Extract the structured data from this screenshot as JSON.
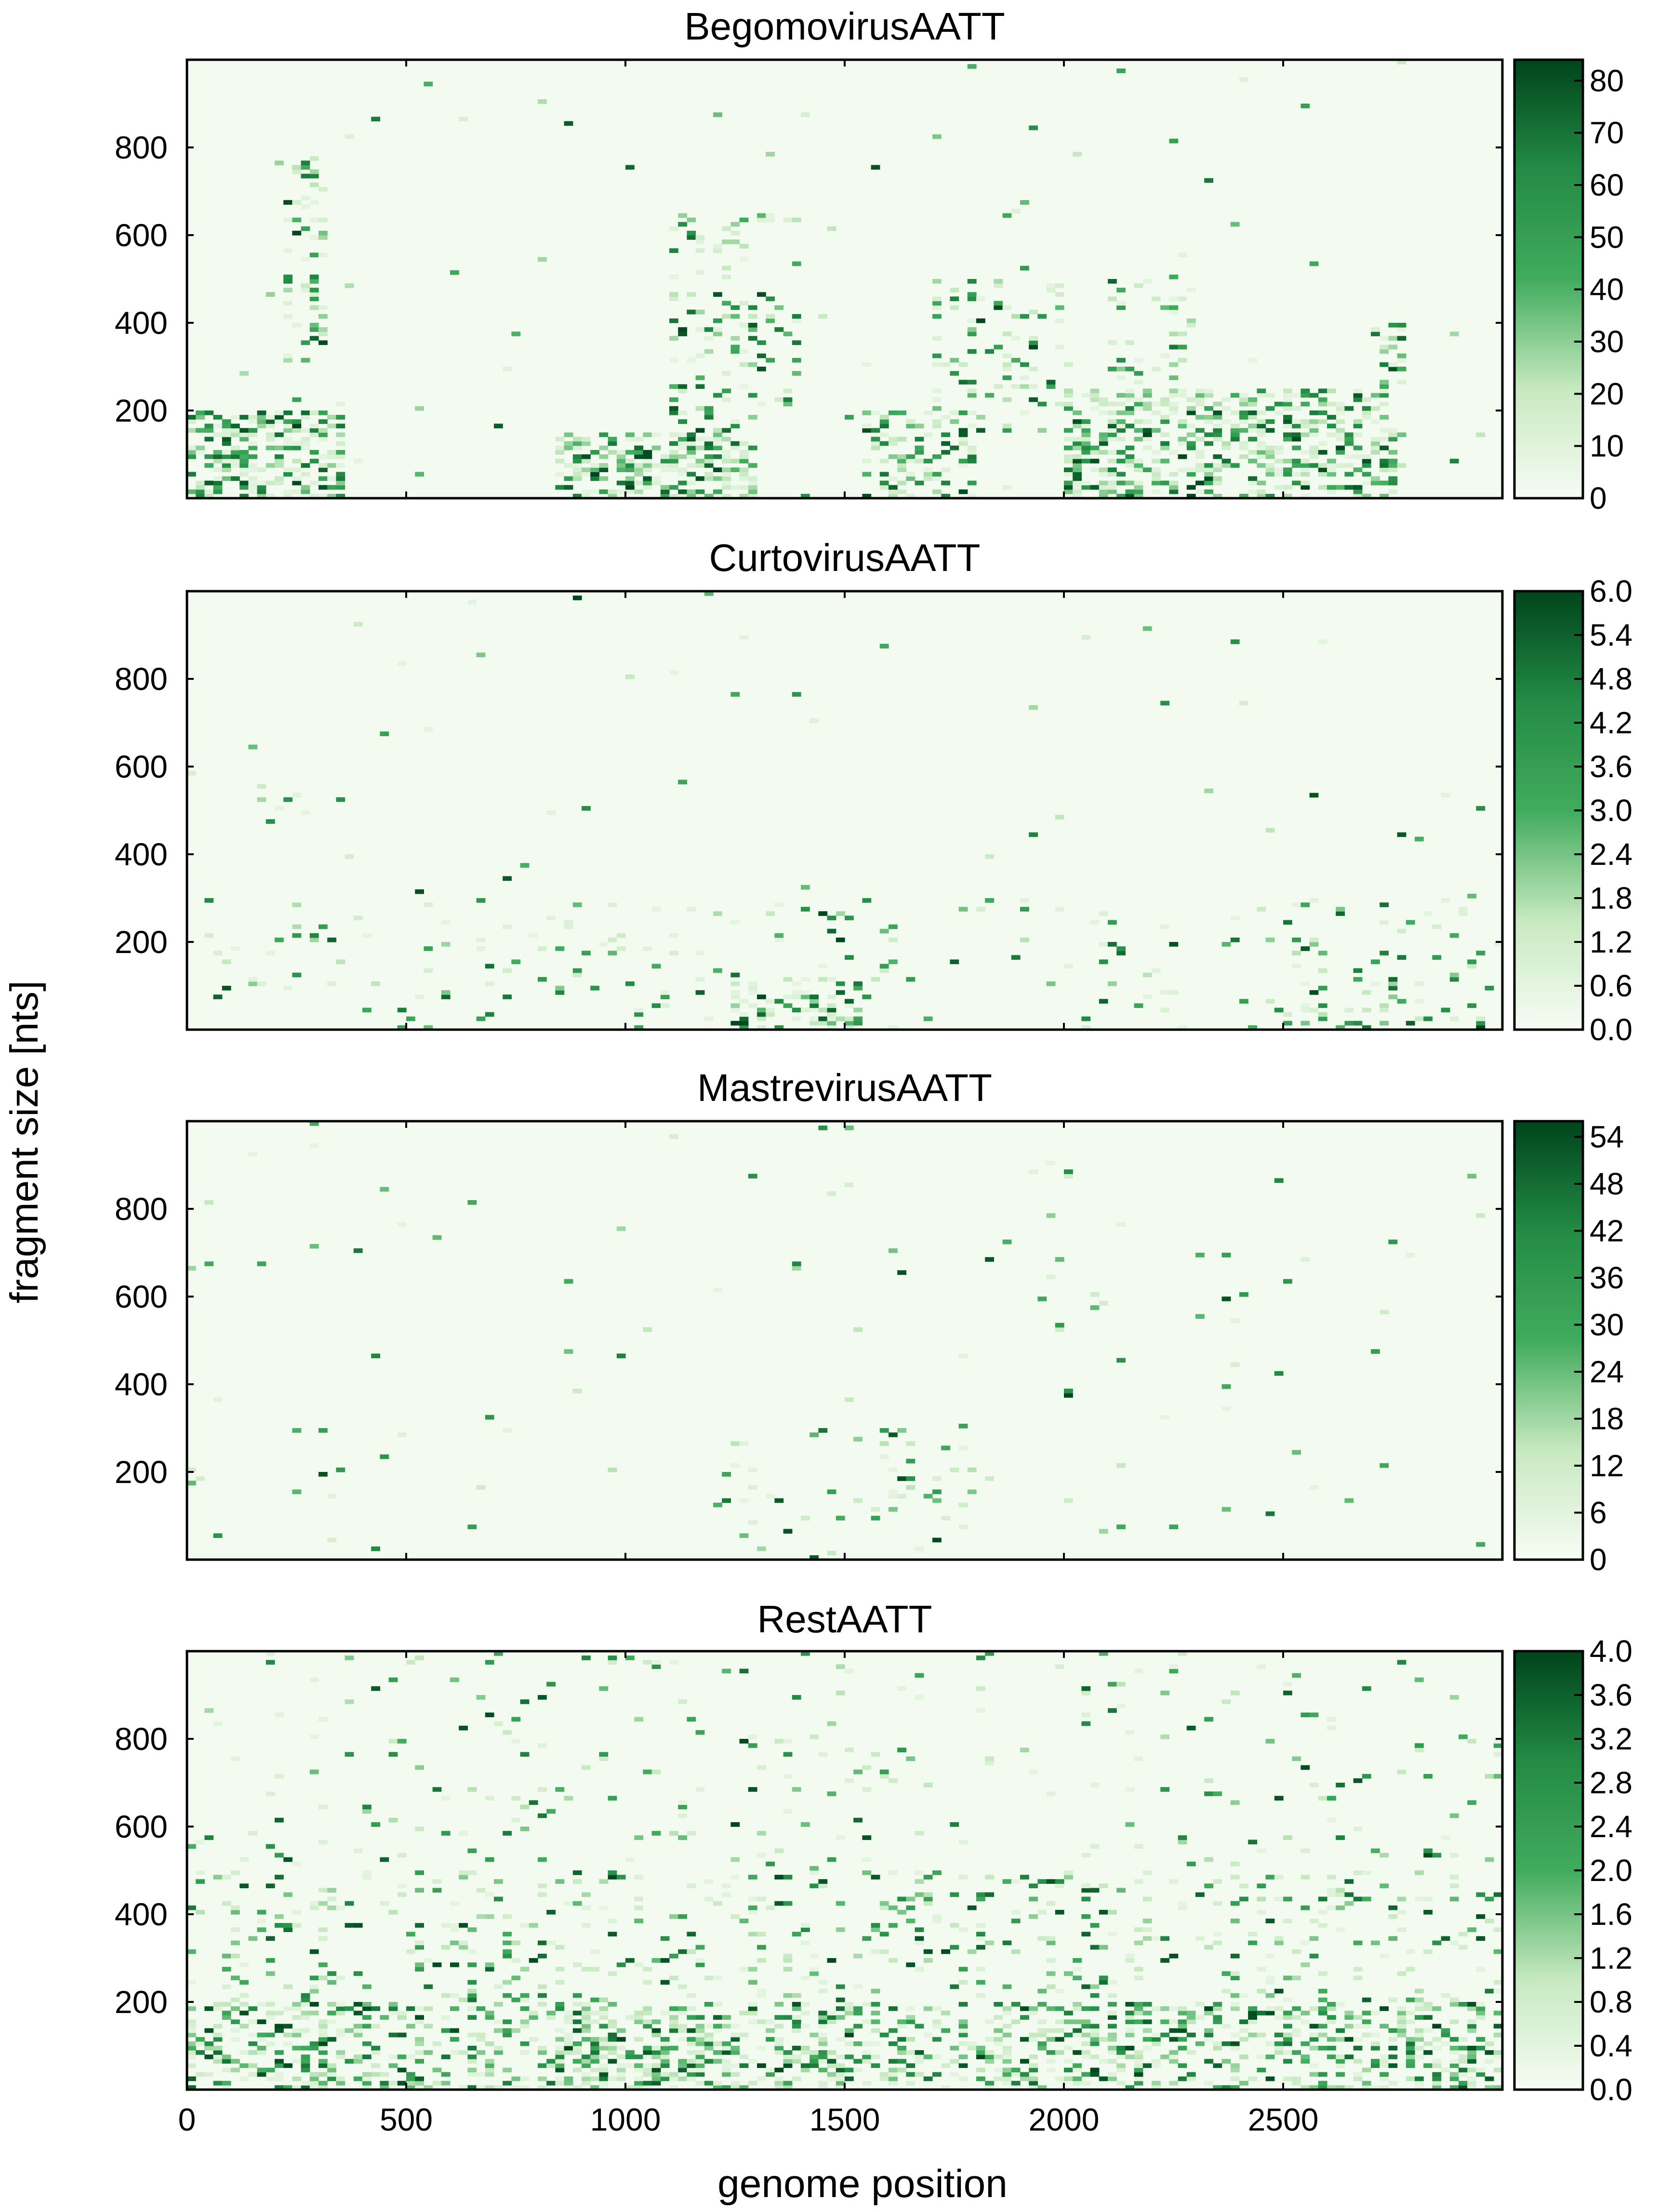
{
  "figure": {
    "ylabel": "fragment size [nts]",
    "xlabel": "genome position",
    "x_ticks": [
      "0",
      "500",
      "1000",
      "1500",
      "2000",
      "2500"
    ],
    "y_ticks": [
      "200",
      "400",
      "600",
      "800"
    ]
  },
  "colors": {
    "cmap_low": "#f3fbf1",
    "cmap_mid": "#2eb66a",
    "cmap_high": "#00441b"
  },
  "chart_data": [
    {
      "type": "heatmap",
      "title": "BegomovirusAATT",
      "xlim": [
        0,
        3000
      ],
      "ylim": [
        0,
        1000
      ],
      "xlabel": "genome position",
      "ylabel": "fragment size [nts]",
      "colorbar": {
        "range": [
          0,
          84
        ],
        "ticks": [
          "0",
          "10",
          "20",
          "30",
          "40",
          "50",
          "60",
          "70",
          "80"
        ]
      },
      "hotspots": [
        {
          "x": [
            0,
            350
          ],
          "y": [
            0,
            200
          ],
          "density": 0.55
        },
        {
          "x": [
            850,
            1300
          ],
          "y": [
            0,
            150
          ],
          "density": 0.5
        },
        {
          "x": [
            1550,
            1800
          ],
          "y": [
            0,
            200
          ],
          "density": 0.35
        },
        {
          "x": [
            2000,
            2750
          ],
          "y": [
            0,
            250
          ],
          "density": 0.45
        },
        {
          "x": [
            220,
            320
          ],
          "y": [
            300,
            780
          ],
          "density": 0.2
        },
        {
          "x": [
            1100,
            1400
          ],
          "y": [
            150,
            650
          ],
          "density": 0.15
        },
        {
          "x": [
            1700,
            2000
          ],
          "y": [
            150,
            500
          ],
          "density": 0.15
        },
        {
          "x": [
            2100,
            2300
          ],
          "y": [
            150,
            500
          ],
          "density": 0.12
        },
        {
          "x": [
            2700,
            2780
          ],
          "y": [
            50,
            400
          ],
          "density": 0.25
        }
      ]
    },
    {
      "type": "heatmap",
      "title": "CurtovirusAATT",
      "xlim": [
        0,
        3000
      ],
      "ylim": [
        0,
        1000
      ],
      "xlabel": "genome position",
      "ylabel": "fragment size [nts]",
      "colorbar": {
        "range": [
          0,
          6.0
        ],
        "ticks": [
          "0.0",
          "0.6",
          "1.2",
          "1.8",
          "2.4",
          "3.0",
          "3.6",
          "4.2",
          "4.8",
          "5.4",
          "6.0"
        ]
      },
      "hotspots": [
        {
          "x": [
            1250,
            1550
          ],
          "y": [
            0,
            120
          ],
          "density": 0.35
        },
        {
          "x": [
            0,
            3000
          ],
          "y": [
            0,
            300
          ],
          "density": 0.05
        },
        {
          "x": [
            2600,
            2950
          ],
          "y": [
            0,
            150
          ],
          "density": 0.12
        },
        {
          "x": [
            150,
            300
          ],
          "y": [
            480,
            560
          ],
          "density": 0.08
        }
      ]
    },
    {
      "type": "heatmap",
      "title": "MastrevirusAATT",
      "xlim": [
        0,
        3000
      ],
      "ylim": [
        0,
        1000
      ],
      "xlabel": "genome position",
      "ylabel": "fragment size [nts]",
      "colorbar": {
        "range": [
          0,
          56
        ],
        "ticks": [
          "0",
          "6",
          "12",
          "18",
          "24",
          "30",
          "36",
          "42",
          "48",
          "54"
        ]
      },
      "hotspots": [
        {
          "x": [
            0,
            3000
          ],
          "y": [
            0,
            1000
          ],
          "density": 0.008
        },
        {
          "x": [
            1200,
            1800
          ],
          "y": [
            0,
            300
          ],
          "density": 0.04
        }
      ]
    },
    {
      "type": "heatmap",
      "title": "RestAATT",
      "xlim": [
        0,
        3000
      ],
      "ylim": [
        0,
        1000
      ],
      "xlabel": "genome position",
      "ylabel": "fragment size [nts]",
      "colorbar": {
        "range": [
          0,
          4.0
        ],
        "ticks": [
          "0.0",
          "0.4",
          "0.8",
          "1.2",
          "1.6",
          "2.0",
          "2.4",
          "2.8",
          "3.2",
          "3.6",
          "4.0"
        ]
      },
      "hotspots": [
        {
          "x": [
            0,
            3000
          ],
          "y": [
            0,
            200
          ],
          "density": 0.35
        },
        {
          "x": [
            0,
            3000
          ],
          "y": [
            200,
            500
          ],
          "density": 0.1
        },
        {
          "x": [
            0,
            3000
          ],
          "y": [
            500,
            1000
          ],
          "density": 0.03
        },
        {
          "x": [
            850,
            1250
          ],
          "y": [
            0,
            120
          ],
          "density": 0.6
        }
      ]
    }
  ]
}
